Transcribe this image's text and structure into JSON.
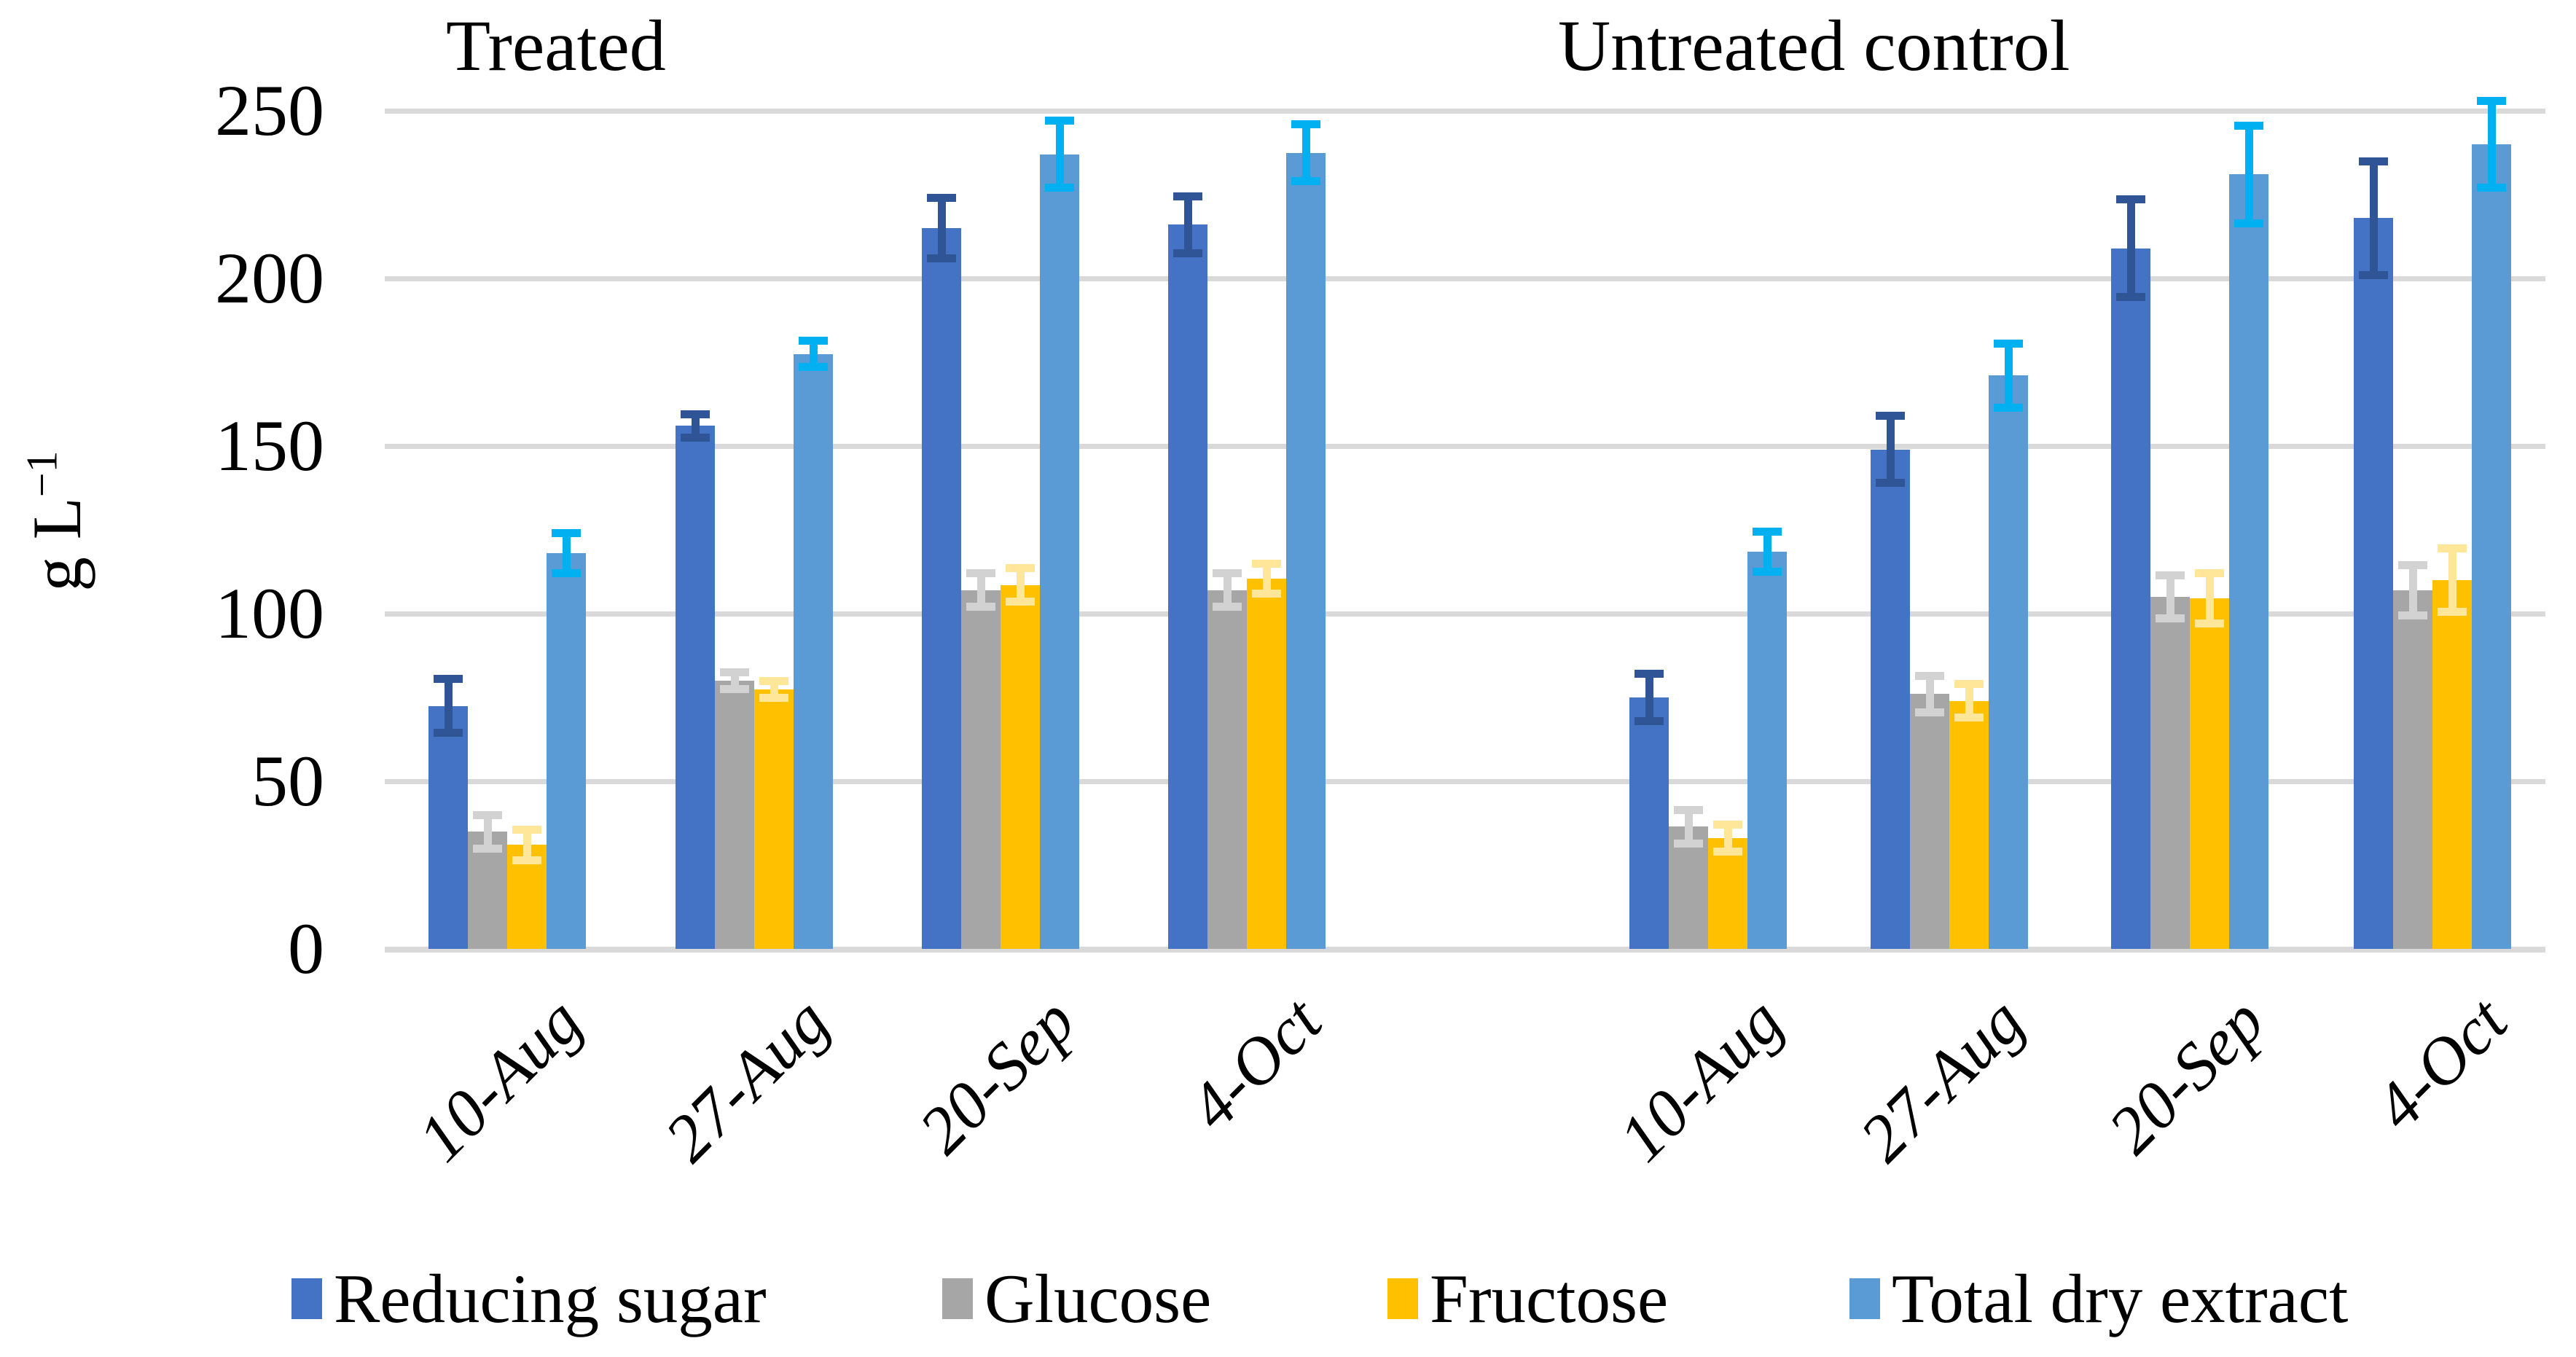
{
  "figure": {
    "y_axis_title_main": "g L",
    "y_axis_title_sup": "−1"
  },
  "chart_data": {
    "type": "bar",
    "title": "",
    "xlabel": "",
    "ylabel": "g L−1",
    "ylim": [
      0,
      250
    ],
    "yticks": [
      250,
      200,
      150,
      100,
      50,
      0
    ],
    "grid": true,
    "error_bars": true,
    "legend_position": "bottom",
    "panels": [
      {
        "title": "Treated",
        "categories": [
          "10-Aug",
          "27-Aug",
          "20-Sep",
          "4-Oct"
        ]
      },
      {
        "title": "Untreated control",
        "categories": [
          "10-Aug",
          "27-Aug",
          "20-Sep",
          "4-Oct"
        ]
      }
    ],
    "series": [
      {
        "name": "Reducing sugar",
        "color": "#4472C4",
        "error_color": "#2F5597",
        "values": {
          "treated": [
            72.5,
            156,
            215,
            216
          ],
          "untreated": [
            75,
            149,
            209,
            218
          ]
        },
        "errors": {
          "treated": [
            8,
            3.5,
            9,
            8.5
          ],
          "untreated": [
            7,
            10,
            14.5,
            17
          ]
        }
      },
      {
        "name": "Glucose",
        "color": "#A6A6A6",
        "error_color": "#D2D2D2",
        "values": {
          "treated": [
            35,
            80,
            107,
            107
          ],
          "untreated": [
            36.5,
            76,
            105,
            107
          ]
        },
        "errors": {
          "treated": [
            5,
            2.5,
            5,
            5
          ],
          "untreated": [
            5,
            5.5,
            6.5,
            7.5
          ]
        }
      },
      {
        "name": "Fructose",
        "color": "#FFC000",
        "error_color": "#FFE699",
        "values": {
          "treated": [
            31,
            77.5,
            108.5,
            110.5
          ],
          "untreated": [
            33,
            74,
            104.5,
            110
          ]
        },
        "errors": {
          "treated": [
            4.5,
            2.5,
            5,
            4.5
          ],
          "untreated": [
            4,
            5,
            7.5,
            9.5
          ]
        }
      },
      {
        "name": "Total dry extract",
        "color": "#5B9BD5",
        "error_color": "#00B0F0",
        "values": {
          "treated": [
            118,
            177.5,
            237,
            237.5
          ],
          "untreated": [
            118.5,
            171,
            231,
            240
          ]
        },
        "errors": {
          "treated": [
            6,
            4,
            10,
            8.5
          ],
          "untreated": [
            6,
            9.5,
            14.5,
            13
          ]
        }
      }
    ]
  }
}
